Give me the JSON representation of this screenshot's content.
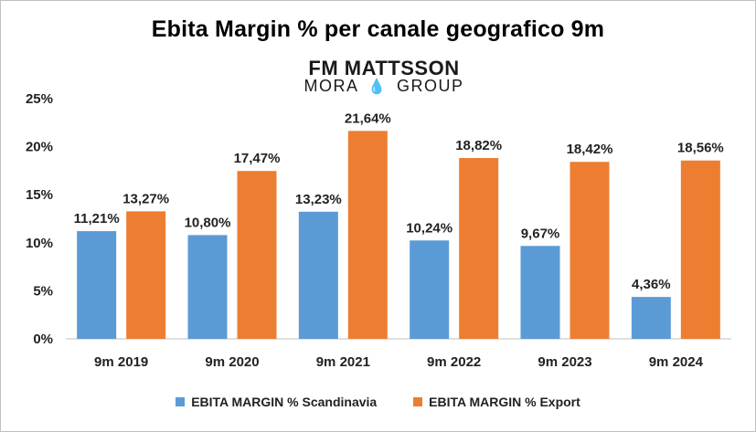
{
  "chart_data": {
    "type": "bar",
    "title": "Ebita Margin % per canale geografico 9m",
    "categories": [
      "9m 2019",
      "9m 2020",
      "9m 2021",
      "9m 2022",
      "9m 2023",
      "9m 2024"
    ],
    "series": [
      {
        "name": "EBITA MARGIN % Scandinavia",
        "color": "#5b9bd5",
        "values": [
          11.21,
          10.8,
          13.23,
          10.24,
          9.67,
          4.36
        ],
        "labels": [
          "11,21%",
          "10,80%",
          "13,23%",
          "10,24%",
          "9,67%",
          "4,36%"
        ]
      },
      {
        "name": "EBITA MARGIN % Export",
        "color": "#ed7d31",
        "values": [
          13.27,
          17.47,
          21.64,
          18.82,
          18.42,
          18.56
        ],
        "labels": [
          "13,27%",
          "17,47%",
          "21,64%",
          "18,82%",
          "18,42%",
          "18,56%"
        ]
      }
    ],
    "ylim": [
      0,
      25
    ],
    "yticks": [
      0,
      5,
      10,
      15,
      20,
      25
    ],
    "ytick_labels": [
      "0%",
      "5%",
      "10%",
      "15%",
      "20%",
      "25%"
    ],
    "xlabel": "",
    "ylabel": "",
    "grid": false,
    "legend": "bottom"
  },
  "logo": {
    "line1": "FM MATTSSON",
    "line2a": "MORA",
    "line2b": "GROUP"
  }
}
